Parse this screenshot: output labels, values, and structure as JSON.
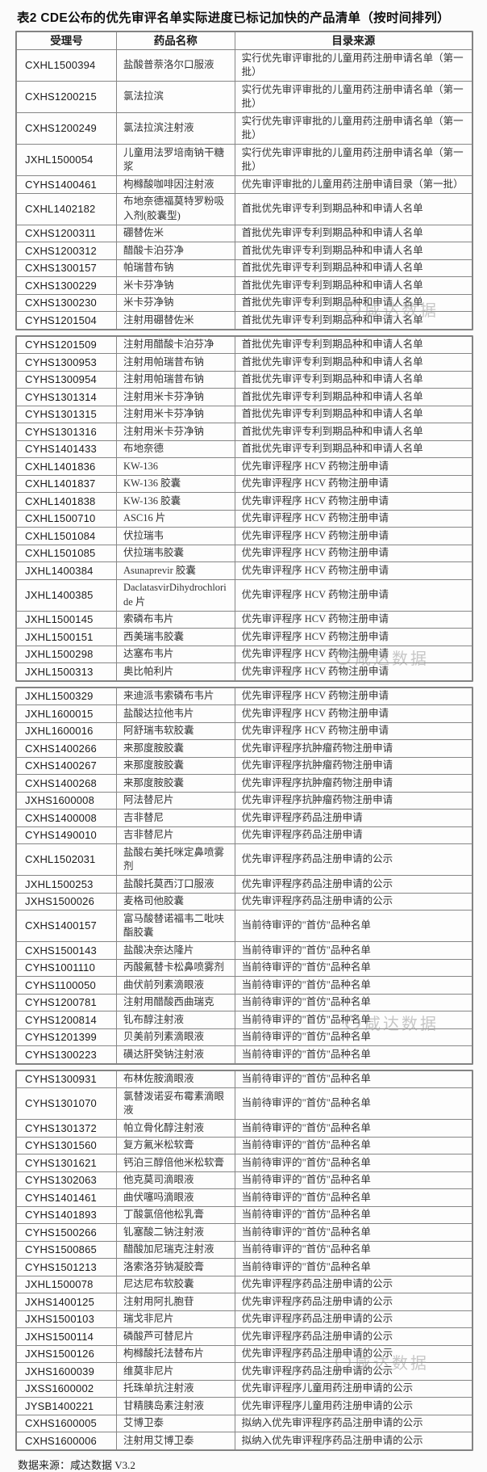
{
  "title": "表2 CDE公布的优先审评名单实际进度已标记加快的产品清单（按时间排列）",
  "footer": "数据来源：咸达数据 V3.2",
  "watermark": {
    "text": "咸达数据"
  },
  "table": {
    "headers": [
      "受理号",
      "药品名称",
      "目录来源"
    ],
    "segments": [
      {
        "rows": [
          [
            "CXHL1500394",
            "盐酸普萘洛尔口服液",
            "实行优先审评审批的儿童用药注册申请名单（第一批）"
          ],
          [
            "CXHS1200215",
            "氯法拉滨",
            "实行优先审评审批的儿童用药注册申请名单（第一批）"
          ],
          [
            "CXHS1200249",
            "氯法拉滨注射液",
            "实行优先审评审批的儿童用药注册申请名单（第一批）"
          ],
          [
            "JXHL1500054",
            "儿童用法罗培南钠干糖浆",
            "实行优先审评审批的儿童用药注册申请名单（第一批）"
          ],
          [
            "CYHS1400461",
            "枸橼酸咖啡因注射液",
            "优先审评审批的儿童用药注册申请目录（第一批）"
          ],
          [
            "CXHL1402182",
            "布地奈德福莫特罗粉吸入剂(胶囊型)",
            "首批优先审评专利到期品种和申请人名单"
          ],
          [
            "CXHS1200311",
            "硼替佐米",
            "首批优先审评专利到期品种和申请人名单"
          ],
          [
            "CXHS1200312",
            "醋酸卡泊芬净",
            "首批优先审评专利到期品种和申请人名单"
          ],
          [
            "CXHS1300157",
            "帕瑞昔布钠",
            "首批优先审评专利到期品种和申请人名单"
          ],
          [
            "CXHS1300229",
            "米卡芬净钠",
            "首批优先审评专利到期品种和申请人名单"
          ],
          [
            "CXHS1300230",
            "米卡芬净钠",
            "首批优先审评专利到期品种和申请人名单"
          ],
          [
            "CYHS1201504",
            "注射用硼替佐米",
            "首批优先审评专利到期品种和申请人名单"
          ]
        ]
      },
      {
        "rows": [
          [
            "CYHS1201509",
            "注射用醋酸卡泊芬净",
            "首批优先审评专利到期品种和申请人名单"
          ],
          [
            "CYHS1300953",
            "注射用帕瑞昔布钠",
            "首批优先审评专利到期品种和申请人名单"
          ],
          [
            "CYHS1300954",
            "注射用帕瑞昔布钠",
            "首批优先审评专利到期品种和申请人名单"
          ],
          [
            "CYHS1301314",
            "注射用米卡芬净钠",
            "首批优先审评专利到期品种和申请人名单"
          ],
          [
            "CYHS1301315",
            "注射用米卡芬净钠",
            "首批优先审评专利到期品种和申请人名单"
          ],
          [
            "CYHS1301316",
            "注射用米卡芬净钠",
            "首批优先审评专利到期品种和申请人名单"
          ],
          [
            "CYHS1401433",
            "布地奈德",
            "首批优先审评专利到期品种和申请人名单"
          ],
          [
            "CXHL1401836",
            "KW-136",
            "优先审评程序 HCV 药物注册申请"
          ],
          [
            "CXHL1401837",
            "KW-136 胶囊",
            "优先审评程序 HCV 药物注册申请"
          ],
          [
            "CXHL1401838",
            "KW-136 胶囊",
            "优先审评程序 HCV 药物注册申请"
          ],
          [
            "CXHL1500710",
            "ASC16 片",
            "优先审评程序 HCV 药物注册申请"
          ],
          [
            "CXHL1501084",
            "伏拉瑞韦",
            "优先审评程序 HCV 药物注册申请"
          ],
          [
            "CXHL1501085",
            "伏拉瑞韦胶囊",
            "优先审评程序 HCV 药物注册申请"
          ],
          [
            "JXHL1400384",
            "Asunaprevir 胶囊",
            "优先审评程序 HCV 药物注册申请"
          ],
          [
            "JXHL1400385",
            "DaclatasvirDihydrochloride 片",
            "优先审评程序 HCV 药物注册申请"
          ],
          [
            "JXHL1500145",
            "索磷布韦片",
            "优先审评程序 HCV 药物注册申请"
          ],
          [
            "JXHL1500151",
            "西美瑞韦胶囊",
            "优先审评程序 HCV 药物注册申请"
          ],
          [
            "JXHL1500298",
            "达塞布韦片",
            "优先审评程序 HCV 药物注册申请"
          ],
          [
            "JXHL1500313",
            "奥比帕利片",
            "优先审评程序 HCV 药物注册申请"
          ]
        ]
      },
      {
        "rows": [
          [
            "JXHL1500329",
            "来迪派韦索磷布韦片",
            "优先审评程序 HCV 药物注册申请"
          ],
          [
            "JXHL1600015",
            "盐酸达拉他韦片",
            "优先审评程序 HCV 药物注册申请"
          ],
          [
            "JXHL1600016",
            "阿舒瑞韦软胶囊",
            "优先审评程序 HCV 药物注册申请"
          ],
          [
            "CXHS1400266",
            "来那度胺胶囊",
            "优先审评程序抗肿瘤药物注册申请"
          ],
          [
            "CXHS1400267",
            "来那度胺胶囊",
            "优先审评程序抗肿瘤药物注册申请"
          ],
          [
            "CXHS1400268",
            "来那度胺胶囊",
            "优先审评程序抗肿瘤药物注册申请"
          ],
          [
            "JXHS1600008",
            "阿法替尼片",
            "优先审评程序抗肿瘤药物注册申请"
          ],
          [
            "CXHS1400008",
            "吉非替尼",
            "优先审评程序药品注册申请"
          ],
          [
            "CYHS1490010",
            "吉非替尼片",
            "优先审评程序药品注册申请"
          ],
          [
            "CXHL1502031",
            "盐酸右美托咪定鼻喷雾剂",
            "优先审评程序药品注册申请的公示"
          ],
          [
            "JXHL1500253",
            "盐酸托莫西汀口服液",
            "优先审评程序药品注册申请的公示"
          ],
          [
            "JXHS1500026",
            "麦格司他胶囊",
            "优先审评程序药品注册申请的公示"
          ],
          [
            "CXHS1400157",
            "富马酸替诺福韦二吡呋酯胶囊",
            "当前待审评的\"首仿\"品种名单"
          ],
          [
            "CXHS1500143",
            "盐酸决奈达隆片",
            "当前待审评的\"首仿\"品种名单"
          ],
          [
            "CYHS1001110",
            "丙酸氟替卡松鼻喷雾剂",
            "当前待审评的\"首仿\"品种名单"
          ],
          [
            "CYHS1100050",
            "曲伏前列素滴眼液",
            "当前待审评的\"首仿\"品种名单"
          ],
          [
            "CYHS1200781",
            "注射用醋酸西曲瑞克",
            "当前待审评的\"首仿\"品种名单"
          ],
          [
            "CYHS1200814",
            "钆布醇注射液",
            "当前待审评的\"首仿\"品种名单"
          ],
          [
            "CYHS1201399",
            "贝美前列素滴眼液",
            "当前待审评的\"首仿\"品种名单"
          ],
          [
            "CYHS1300223",
            "磺达肝癸钠注射液",
            "当前待审评的\"首仿\"品种名单"
          ]
        ]
      },
      {
        "rows": [
          [
            "CYHS1300931",
            "布林佐胺滴眼液",
            "当前待审评的\"首仿\"品种名单"
          ],
          [
            "CYHS1301070",
            "氯替泼诺妥布霉素滴眼液",
            "当前待审评的\"首仿\"品种名单"
          ],
          [
            "CYHS1301372",
            "帕立骨化醇注射液",
            "当前待审评的\"首仿\"品种名单"
          ],
          [
            "CYHS1301560",
            "复方氟米松软膏",
            "当前待审评的\"首仿\"品种名单"
          ],
          [
            "CYHS1301621",
            "钙泊三醇倍他米松软膏",
            "当前待审评的\"首仿\"品种名单"
          ],
          [
            "CYHS1302063",
            "他克莫司滴眼液",
            "当前待审评的\"首仿\"品种名单"
          ],
          [
            "CYHS1401461",
            "曲伏噻吗滴眼液",
            "当前待审评的\"首仿\"品种名单"
          ],
          [
            "CYHS1401893",
            "丁酸氯倍他松乳膏",
            "当前待审评的\"首仿\"品种名单"
          ],
          [
            "CYHS1500266",
            "钆塞酸二钠注射液",
            "当前待审评的\"首仿\"品种名单"
          ],
          [
            "CYHS1500865",
            "醋酸加尼瑞克注射液",
            "当前待审评的\"首仿\"品种名单"
          ],
          [
            "CYHS1501213",
            "洛索洛芬钠凝胶膏",
            "当前待审评的\"首仿\"品种名单"
          ],
          [
            "JXHL1500078",
            "尼达尼布软胶囊",
            "优先审评程序药品注册申请的公示"
          ],
          [
            "JXHS1400125",
            "注射用阿扎胞苷",
            "优先审评程序药品注册申请的公示"
          ],
          [
            "JXHS1500103",
            "瑞戈非尼片",
            "优先审评程序药品注册申请的公示"
          ],
          [
            "JXHS1500114",
            "磷酸芦可替尼片",
            "优先审评程序药品注册申请的公示"
          ],
          [
            "JXHS1500126",
            "枸橼酸托法替布片",
            "优先审评程序药品注册申请的公示"
          ],
          [
            "JXHS1600039",
            "维莫非尼片",
            "优先审评程序药品注册申请的公示"
          ],
          [
            "JXSS1600002",
            "托珠单抗注射液",
            "优先审评程序儿童用药注册申请的公示"
          ],
          [
            "JYSB1400221",
            "甘精胰岛素注射液",
            "优先审评程序儿童用药注册申请的公示"
          ],
          [
            "CXHS1600005",
            "艾博卫泰",
            "拟纳入优先审评程序药品注册申请的公示"
          ],
          [
            "CXHS1600006",
            "注射用艾博卫泰",
            "拟纳入优先审评程序药品注册申请的公示"
          ]
        ]
      }
    ]
  }
}
